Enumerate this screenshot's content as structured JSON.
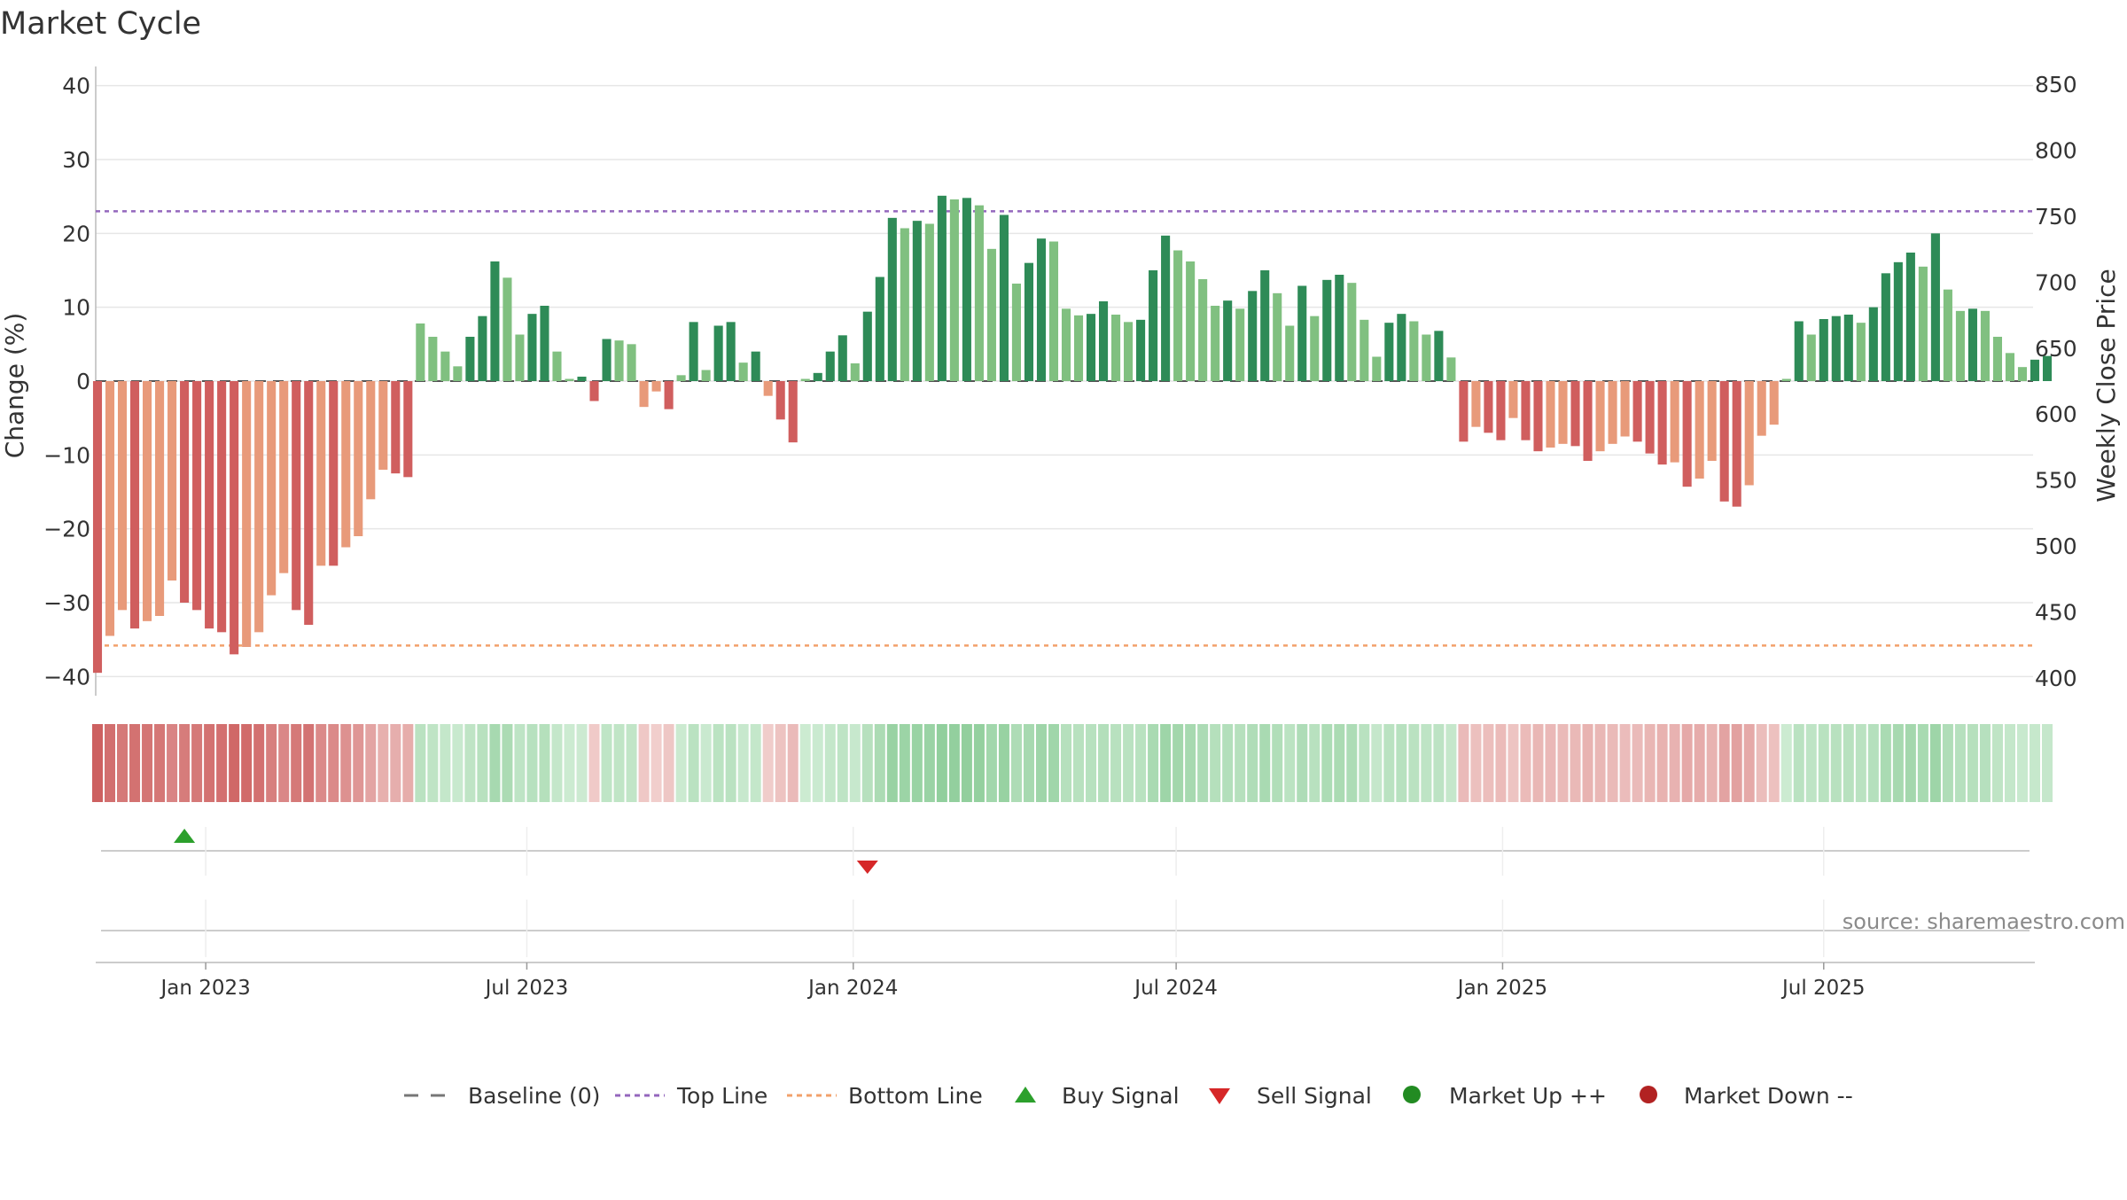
{
  "chart_data": {
    "type": "bar",
    "title": "Market Cycle",
    "ylabel": "Change (%)",
    "y2label": "Weekly Close Price",
    "ylim": [
      -42,
      42
    ],
    "y2lim": [
      390,
      860
    ],
    "yticks": [
      40,
      30,
      20,
      10,
      0,
      -10,
      -20,
      -30,
      -40
    ],
    "yticks_labels": [
      "40",
      "30",
      "20",
      "10",
      "0",
      "−10",
      "−20",
      "−30",
      "−40"
    ],
    "y2ticks": [
      850,
      800,
      750,
      700,
      650,
      600,
      550,
      500,
      450,
      400
    ],
    "xlim": [
      "2022-10-31",
      "2025-10-27"
    ],
    "xticks": [
      {
        "date": "2023-01-01",
        "label": "Jan 2023"
      },
      {
        "date": "2023-07-01",
        "label": "Jul 2023"
      },
      {
        "date": "2024-01-01",
        "label": "Jan 2024"
      },
      {
        "date": "2024-07-01",
        "label": "Jul 2024"
      },
      {
        "date": "2025-01-01",
        "label": "Jan 2025"
      },
      {
        "date": "2025-07-01",
        "label": "Jul 2025"
      }
    ],
    "start_date": "2022-11-01",
    "week_step_days": 7,
    "values": [
      -39.5,
      -34.5,
      -31,
      -33.5,
      -32.5,
      -31.8,
      -27,
      -30,
      -31,
      -33.5,
      -34,
      -37,
      -36,
      -34,
      -29,
      -26,
      -31,
      -33,
      -25,
      -25,
      -22.5,
      -21,
      -16,
      -12,
      -12.5,
      -13,
      7.8,
      6,
      4,
      2,
      6,
      8.8,
      16.2,
      14,
      6.3,
      9.1,
      10.2,
      4,
      0.3,
      0.6,
      -2.7,
      5.7,
      5.5,
      5,
      -3.5,
      -1.4,
      -3.8,
      0.8,
      8,
      1.5,
      7.5,
      8,
      2.5,
      4,
      -2,
      -5.2,
      -8.3,
      0.3,
      1.1,
      4,
      6.2,
      2.4,
      9.4,
      14.1,
      22.1,
      20.7,
      21.7,
      21.3,
      25.1,
      24.6,
      24.8,
      23.8,
      17.9,
      22.5,
      13.2,
      16,
      19.3,
      18.9,
      9.8,
      8.9,
      9.1,
      10.8,
      9,
      8,
      8.3,
      15,
      19.7,
      17.7,
      16.2,
      13.8,
      10.2,
      10.9,
      9.8,
      12.2,
      15,
      11.9,
      7.5,
      12.9,
      8.8,
      13.7,
      14.4,
      13.3,
      8.3,
      3.3,
      7.9,
      9.1,
      8.1,
      6.3,
      6.8,
      3.2,
      -8.2,
      -6.2,
      -7,
      -8,
      -5,
      -8,
      -9.5,
      -9,
      -8.5,
      -8.8,
      -10.8,
      -9.5,
      -8.5,
      -7.5,
      -8.2,
      -9.8,
      -11.3,
      -11,
      -14.3,
      -13.2,
      -10.8,
      -16.3,
      -17,
      -14.1,
      -7.4,
      -5.9,
      0.3,
      8.1,
      6.3,
      8.4,
      8.8,
      9,
      7.9,
      10,
      14.6,
      16.1,
      17.4,
      15.5,
      20,
      12.4,
      9.5,
      9.8,
      9.5,
      6,
      3.8,
      1.9,
      2.9,
      3.4
    ],
    "top_line": 23,
    "bottom_line": -35.8,
    "signals": [
      {
        "type": "buy",
        "date": "2022-12-20"
      },
      {
        "type": "sell",
        "date": "2024-01-09"
      }
    ],
    "legend": {
      "placement": "bottom",
      "items": [
        {
          "label": "Baseline (0)",
          "symbol": "dash",
          "color": "#777777"
        },
        {
          "label": "Top Line",
          "symbol": "dotted",
          "color": "#9467bd"
        },
        {
          "label": "Bottom Line",
          "symbol": "dotted",
          "color": "#f2a16b"
        },
        {
          "label": "Buy Signal",
          "symbol": "triangle-up",
          "color": "#2ca02c"
        },
        {
          "label": "Sell Signal",
          "symbol": "triangle-down",
          "color": "#d62728"
        },
        {
          "label": "Market Up ++",
          "symbol": "circle",
          "color": "#228b22"
        },
        {
          "label": "Market Down --",
          "symbol": "circle",
          "color": "#b22222"
        }
      ]
    },
    "colors": {
      "up_dark": "#2e8b57",
      "up_light": "#80c080",
      "down_dark": "#d05e5e",
      "down_light": "#e89a7a",
      "top_line": "#9467bd",
      "bottom_line": "#f2a16b",
      "grid": "#e6e6e6",
      "axis": "#cccccc"
    },
    "grid": true,
    "source": "source: sharemaestro.com"
  }
}
